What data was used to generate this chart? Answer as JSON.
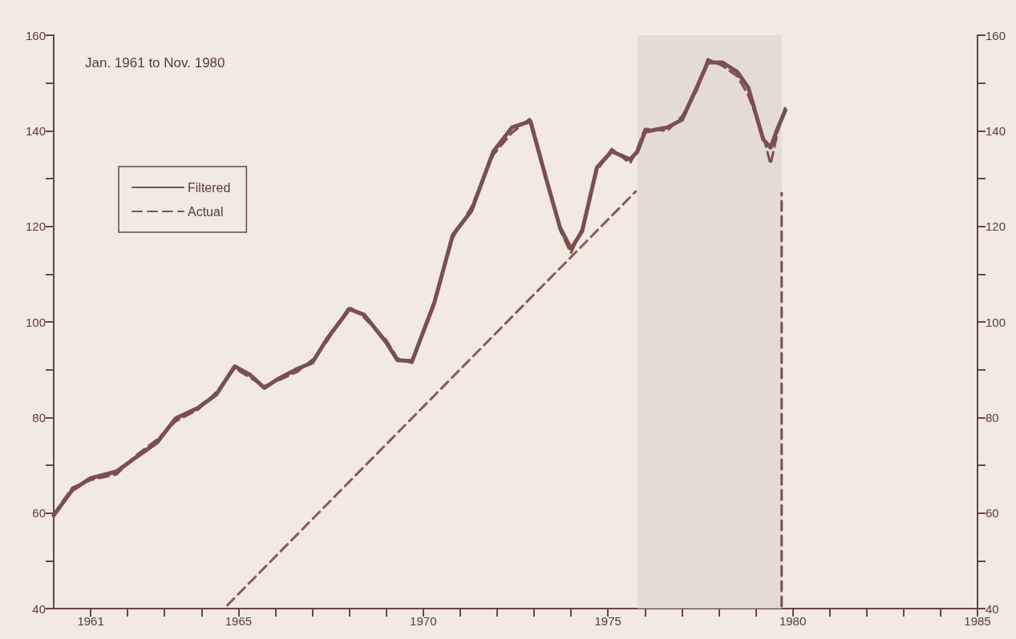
{
  "chart_data": {
    "type": "line",
    "annotations": [
      "Jan. 1961 to Nov. 1980"
    ],
    "xlim": [
      1960,
      1985
    ],
    "xticks": [
      1961,
      {
        "value": 1962,
        "label": null
      },
      {
        "value": 1963,
        "label": null
      },
      {
        "value": 1964,
        "label": null
      },
      1965,
      {
        "value": 1966,
        "label": null
      },
      {
        "value": 1967,
        "label": null
      },
      {
        "value": 1968,
        "label": null
      },
      {
        "value": 1969,
        "label": null
      },
      1970,
      {
        "value": 1971,
        "label": null
      },
      {
        "value": 1972,
        "label": null
      },
      {
        "value": 1973,
        "label": null
      },
      {
        "value": 1974,
        "label": null
      },
      1975,
      {
        "value": 1976,
        "label": null
      },
      {
        "value": 1977,
        "label": null
      },
      {
        "value": 1978,
        "label": null
      },
      {
        "value": 1979,
        "label": null
      },
      1980,
      {
        "value": 1981,
        "label": null
      },
      {
        "value": 1982,
        "label": null
      },
      {
        "value": 1983,
        "label": null
      },
      {
        "value": 1984,
        "label": null
      },
      1985
    ],
    "ylim": [
      40,
      160
    ],
    "yticks": [
      40,
      {
        "value": 50,
        "label": null
      },
      60,
      {
        "value": 70,
        "label": null
      },
      80,
      {
        "value": 90,
        "label": null
      },
      100,
      {
        "value": 110,
        "label": null
      },
      120,
      {
        "value": 130,
        "label": null
      },
      140,
      {
        "value": 150,
        "label": null
      },
      160
    ],
    "y2lim": [
      40,
      160
    ],
    "y2ticks": [
      40,
      {
        "value": 50,
        "label": null
      },
      60,
      {
        "value": 70,
        "label": null
      },
      80,
      {
        "value": 90,
        "label": null
      },
      100,
      {
        "value": 110,
        "label": null
      },
      120,
      {
        "value": 130,
        "label": null
      },
      140,
      {
        "value": 150,
        "label": null
      },
      160
    ],
    "grid": false,
    "legend": "top left",
    "marker": "none",
    "bands": [
      {
        "axis": "x",
        "from": 1975.8,
        "to": 1979.7,
        "color": "#ddd4cf"
      }
    ],
    "series": [
      {
        "name": "Filtered",
        "color": "#7a4f4c",
        "line_style": "solid",
        "x": [
          1960.0,
          1960.5,
          1961.0,
          1961.7,
          1962.2,
          1962.8,
          1963.3,
          1963.9,
          1964.4,
          1964.9,
          1965.3,
          1965.7,
          1966.1,
          1966.6,
          1967.0,
          1967.4,
          1968.0,
          1968.4,
          1969.0,
          1969.3,
          1969.7,
          1970.3,
          1970.8,
          1971.3,
          1971.9,
          1972.4,
          1972.9,
          1973.3,
          1973.7,
          1974.0,
          1974.3,
          1974.7,
          1975.1,
          1975.6,
          1975.8,
          1976.0,
          1976.6,
          1977.0,
          1977.4,
          1977.7,
          1978.1,
          1978.5,
          1978.8,
          1979.2,
          1979.4,
          1979.6,
          1979.8
        ],
        "values": [
          59.5,
          64.8,
          67.3,
          68.7,
          71.5,
          74.8,
          79.8,
          82,
          84.8,
          90.7,
          89,
          86.2,
          88.2,
          90.2,
          91.5,
          96.5,
          102.7,
          101.5,
          95.7,
          92,
          91.8,
          104,
          118.2,
          123.2,
          135.7,
          140.7,
          142,
          130.7,
          119.8,
          115.3,
          119,
          132.3,
          135.7,
          134,
          135.7,
          139.8,
          140.7,
          142.3,
          149,
          154.3,
          154.3,
          152.3,
          149,
          138.2,
          136.5,
          140.7,
          144.3
        ]
      },
      {
        "name": "Actual",
        "color": "#7a4f4c",
        "line_style": "dashed",
        "x": [
          1960.0,
          1960.5,
          1961.0,
          1961.7,
          1962.2,
          1962.8,
          1963.3,
          1963.9,
          1964.4,
          1964.9,
          1965.3,
          1965.7,
          1966.1,
          1966.6,
          1967.0,
          1967.4,
          1968.0,
          1968.4,
          1969.0,
          1969.3,
          1969.7,
          1970.3,
          1970.8,
          1971.3,
          1971.9,
          1972.4,
          1972.9,
          1973.3,
          1973.7,
          1974.0,
          1974.3,
          1974.7,
          1975.1,
          1975.6,
          1975.8,
          1976.0,
          1976.6,
          1977.0,
          1977.4,
          1977.7,
          1978.1,
          1978.5,
          1978.8,
          1979.2,
          1979.4,
          1979.6,
          1979.8
        ],
        "values": [
          59.8,
          65.3,
          66.9,
          68.1,
          71.9,
          75.4,
          79.2,
          81.6,
          85.3,
          90.3,
          88.4,
          86.6,
          87.8,
          89.6,
          92.1,
          96.0,
          103.2,
          100.9,
          96.2,
          92.4,
          91.4,
          104.5,
          117.6,
          124.0,
          135.0,
          139.6,
          142.6,
          131.2,
          119.2,
          114.4,
          119.6,
          131.6,
          136.2,
          133.2,
          136.4,
          140.4,
          140.0,
          143.0,
          148.4,
          155.0,
          153.6,
          151.4,
          147.4,
          139.0,
          133.0,
          140.0,
          145.0
        ]
      },
      {
        "type": "line",
        "color": "#8a5a56",
        "line_style": "dashed",
        "x": [
          1964.7,
          1975.75
        ],
        "values": [
          40.7,
          127.3
        ]
      },
      {
        "type": "line",
        "color": "#7a4f4c",
        "line_style": "dashed",
        "x": [
          1979.7,
          1979.7
        ],
        "values": [
          40.5,
          127
        ]
      }
    ]
  }
}
